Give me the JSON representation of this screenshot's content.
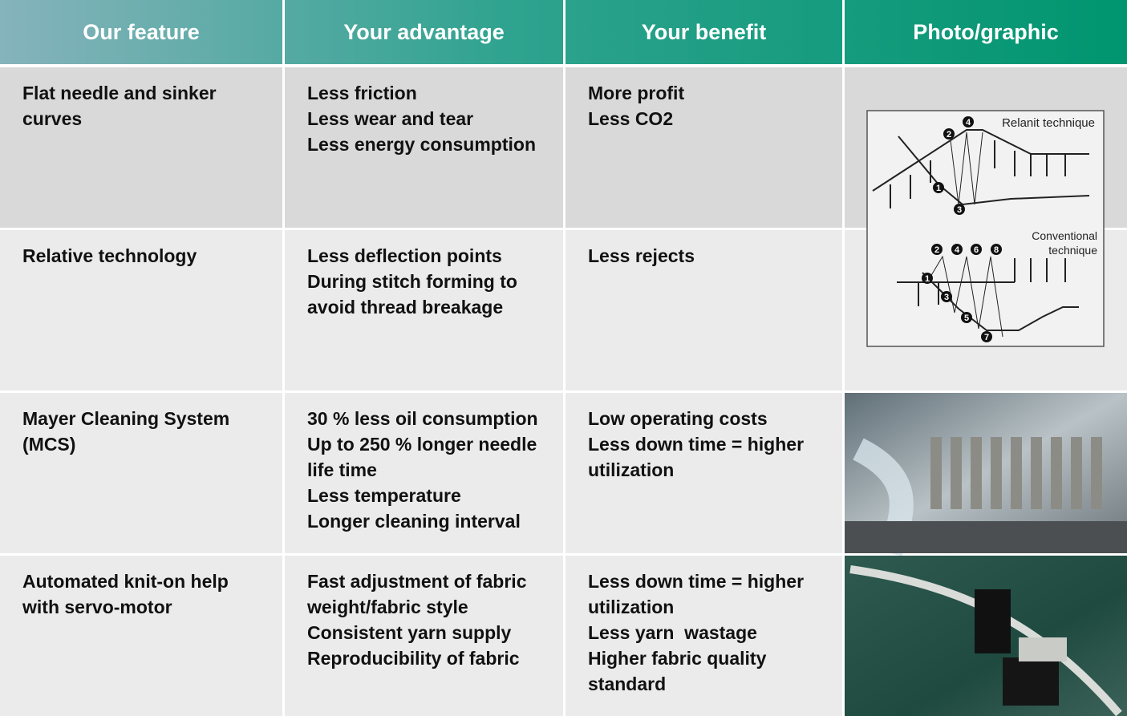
{
  "table": {
    "headers": [
      "Our feature",
      "Your advantage",
      "Your benefit",
      "Photo/graphic"
    ],
    "rows": [
      [
        [
          "Flat needle and sinker",
          "curves"
        ],
        [
          "Less friction",
          "Less wear and tear",
          "Less energy consumption"
        ],
        [
          "More profit",
          "Less CO2"
        ]
      ],
      [
        [
          "Relative technology"
        ],
        [
          "Less deflection points",
          "During stitch forming to",
          "avoid thread breakage"
        ],
        [
          "Less rejects"
        ]
      ],
      [
        [
          "Mayer Cleaning System",
          "(MCS)"
        ],
        [
          "30 % less oil consumption",
          "Up to 250 % longer needle",
          "life time",
          "Less temperature",
          "Longer cleaning interval"
        ],
        [
          "Low operating costs",
          "Less down time = higher",
          "utilization"
        ]
      ],
      [
        [
          "Automated knit-on help",
          "with servo-motor"
        ],
        [
          "Fast adjustment of fabric",
          "weight/fabric style",
          "Consistent yarn supply",
          "Reproducibility of fabric"
        ],
        [
          "Less down time = higher",
          "utilization",
          "Less yarn  wastage",
          "Higher fabric quality",
          "standard"
        ]
      ]
    ]
  },
  "graphic": {
    "relanit_label": "Relanit technique",
    "conventional_label": [
      "Conventional",
      "technique"
    ],
    "relanit_numbers": [
      "1",
      "2",
      "3",
      "4"
    ],
    "conventional_numbers": [
      "1",
      "2",
      "3",
      "4",
      "5",
      "6",
      "7",
      "8"
    ]
  }
}
